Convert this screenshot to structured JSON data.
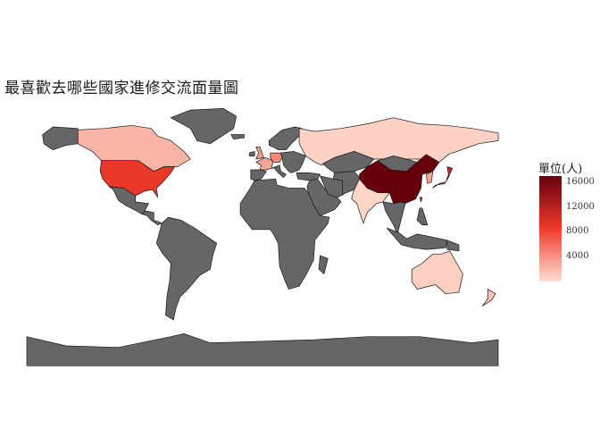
{
  "chart": {
    "title": "最喜歡去哪些國家進修交流面量圖",
    "type": "choropleth",
    "no_data_color": "#666666",
    "color_low": "#fee0d2",
    "color_mid": "#ef3b2c",
    "color_high": "#67000d",
    "legend": {
      "title": "單位(人)",
      "min": 0,
      "max": 17000,
      "ticks": [
        "4000",
        "8000",
        "12000",
        "16000"
      ],
      "tick_values": [
        4000,
        8000,
        12000,
        16000
      ]
    }
  },
  "chart_data": {
    "type": "choropleth",
    "title": "最喜歡去哪些國家進修交流面量圖",
    "value_label": "單位(人)",
    "colorbar_range": [
      0,
      17000
    ],
    "values": [
      {
        "country": "China",
        "value": 17000
      },
      {
        "country": "Japan",
        "value": 11000
      },
      {
        "country": "United States",
        "value": 9000
      },
      {
        "country": "Canada",
        "value": 2200
      },
      {
        "country": "Russia",
        "value": 700
      },
      {
        "country": "United Kingdom",
        "value": 3500
      },
      {
        "country": "Germany",
        "value": 4500
      },
      {
        "country": "France",
        "value": 3000
      },
      {
        "country": "Australia",
        "value": 900
      },
      {
        "country": "New Zealand",
        "value": 1500
      },
      {
        "country": "Korea",
        "value": 3000
      },
      {
        "country": "India",
        "value": 500
      }
    ]
  }
}
